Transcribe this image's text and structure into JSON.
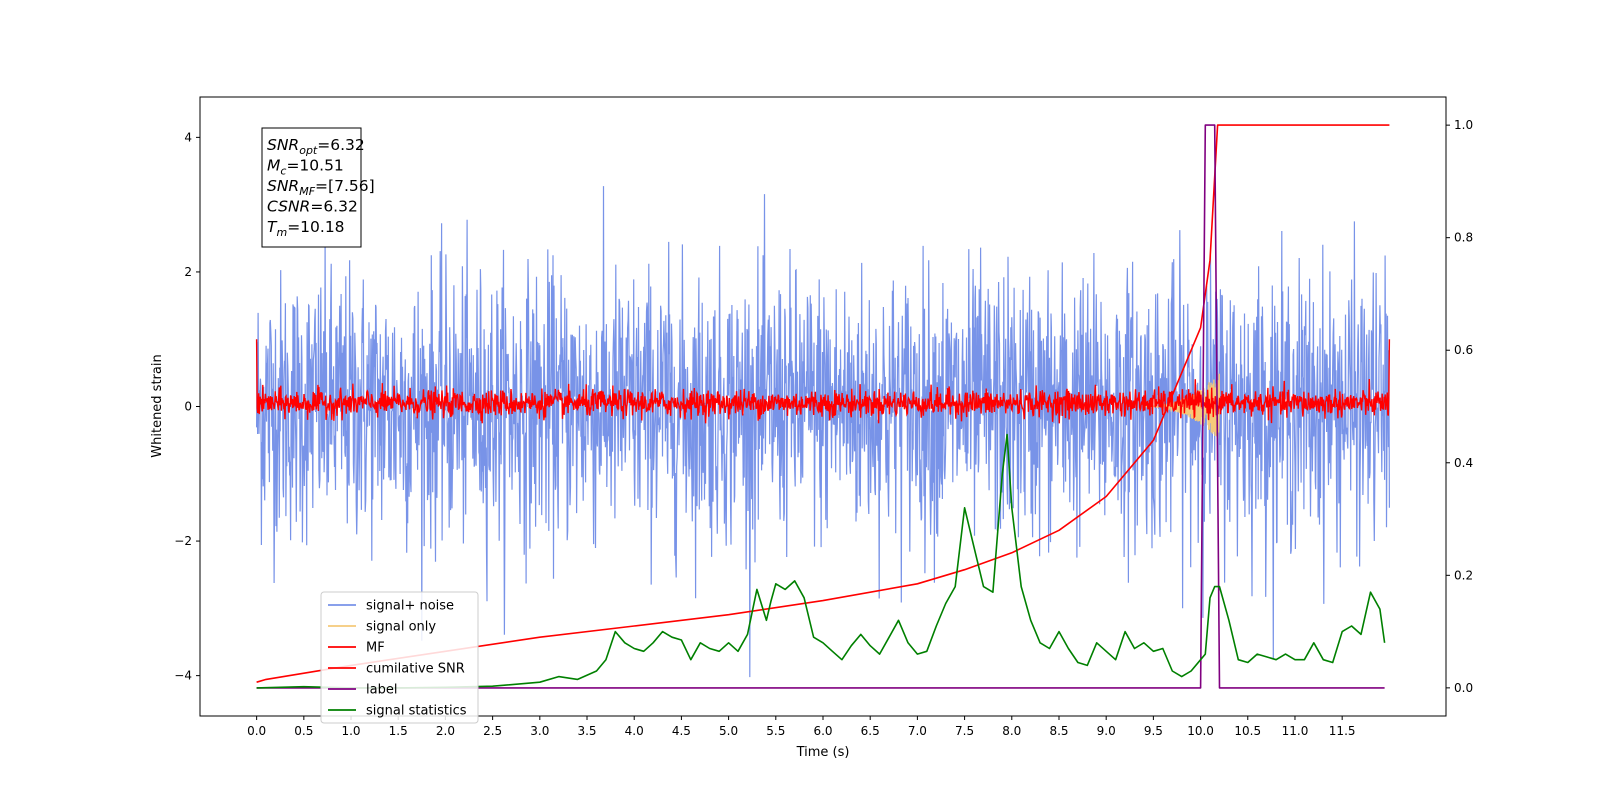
{
  "chart_data": {
    "type": "line",
    "xlabel": "Time (s)",
    "ylabel_left": "Whitened strain",
    "ylabel_right": "",
    "xlim": [
      -0.6,
      12.6
    ],
    "ylim_left": [
      -4.6,
      4.6
    ],
    "ylim_right": [
      -0.05,
      1.05
    ],
    "x_ticks": [
      "0.0",
      "0.5",
      "1.0",
      "1.5",
      "2.0",
      "2.5",
      "3.0",
      "3.5",
      "4.0",
      "4.5",
      "5.0",
      "5.5",
      "6.0",
      "6.5",
      "7.0",
      "7.5",
      "8.0",
      "8.5",
      "9.0",
      "9.5",
      "10.0",
      "10.5",
      "11.0",
      "11.5"
    ],
    "y_ticks_left": [
      "−4",
      "−2",
      "0",
      "2",
      "4"
    ],
    "y_ticks_right": [
      "0.0",
      "0.2",
      "0.4",
      "0.6",
      "0.8",
      "1.0"
    ],
    "grid": false,
    "legend_position": "lower-left",
    "annotation_lines": [
      {
        "sym": "SNR",
        "sub": "opt",
        "value": "=6.32"
      },
      {
        "sym": "M",
        "sub": "c",
        "value": "=10.51"
      },
      {
        "sym": "SNR",
        "sub": "MF",
        "value": "=[7.56]"
      },
      {
        "sym": "CSNR",
        "sub": "",
        "value": "=6.32"
      },
      {
        "sym": "T",
        "sub": "m",
        "value": "=10.18"
      }
    ],
    "series": [
      {
        "name": "signal+ noise",
        "axis": "left",
        "color": "#7893e8",
        "kind": "noise",
        "x_range": [
          0,
          12.0
        ],
        "mean": 0,
        "std": 1.0,
        "max_abs": 4.15
      },
      {
        "name": "signal only",
        "axis": "left",
        "color": "#f5c97a",
        "kind": "chirp",
        "x_range": [
          9.4,
          10.2
        ],
        "peak_amplitude": 0.5
      },
      {
        "name": "MF",
        "axis": "left",
        "color": "#ff0000",
        "kind": "noise",
        "x_range": [
          0,
          12.0
        ],
        "mean": 0.05,
        "std": 0.1,
        "start_value": 1.0,
        "end_value": 1.0
      },
      {
        "name": "cumilative SNR",
        "axis": "right",
        "color": "#ff0000",
        "kind": "curve",
        "x": [
          0.0,
          0.1,
          1.0,
          2.0,
          3.0,
          4.0,
          5.0,
          6.0,
          7.0,
          7.5,
          8.0,
          8.5,
          9.0,
          9.5,
          10.0,
          10.1,
          10.18,
          10.2,
          11.0,
          12.0
        ],
        "y": [
          0.01,
          0.015,
          0.04,
          0.065,
          0.09,
          0.11,
          0.13,
          0.155,
          0.185,
          0.21,
          0.24,
          0.28,
          0.34,
          0.44,
          0.64,
          0.76,
          1.0,
          1.0,
          1.0,
          1.0
        ]
      },
      {
        "name": "label",
        "axis": "right",
        "color": "#800080",
        "kind": "step",
        "x": [
          0.0,
          10.0,
          10.05,
          10.15,
          10.2,
          11.95
        ],
        "y": [
          0.0,
          0.0,
          1.0,
          1.0,
          0.0,
          0.0
        ]
      },
      {
        "name": "signal statistics",
        "axis": "right",
        "color": "#008000",
        "kind": "curve",
        "x": [
          0.0,
          0.5,
          1.0,
          1.5,
          2.0,
          2.5,
          3.0,
          3.2,
          3.4,
          3.6,
          3.7,
          3.8,
          3.9,
          4.0,
          4.1,
          4.2,
          4.3,
          4.4,
          4.5,
          4.6,
          4.7,
          4.8,
          4.9,
          5.0,
          5.1,
          5.2,
          5.3,
          5.4,
          5.45,
          5.5,
          5.6,
          5.7,
          5.8,
          5.9,
          6.0,
          6.1,
          6.2,
          6.3,
          6.4,
          6.5,
          6.6,
          6.7,
          6.8,
          6.9,
          7.0,
          7.1,
          7.2,
          7.3,
          7.4,
          7.5,
          7.6,
          7.7,
          7.8,
          7.9,
          7.95,
          8.0,
          8.1,
          8.2,
          8.3,
          8.4,
          8.5,
          8.6,
          8.7,
          8.8,
          8.9,
          9.0,
          9.1,
          9.2,
          9.3,
          9.4,
          9.5,
          9.6,
          9.7,
          9.8,
          9.9,
          10.0,
          10.05,
          10.1,
          10.15,
          10.2,
          10.3,
          10.4,
          10.5,
          10.6,
          10.7,
          10.8,
          10.9,
          11.0,
          11.1,
          11.2,
          11.3,
          11.4,
          11.5,
          11.6,
          11.7,
          11.8,
          11.9,
          11.95
        ],
        "y": [
          0.0,
          0.002,
          0.0,
          0.0,
          0.001,
          0.003,
          0.01,
          0.02,
          0.015,
          0.03,
          0.05,
          0.1,
          0.08,
          0.07,
          0.065,
          0.08,
          0.1,
          0.09,
          0.085,
          0.05,
          0.08,
          0.07,
          0.065,
          0.08,
          0.065,
          0.095,
          0.175,
          0.12,
          0.155,
          0.185,
          0.175,
          0.19,
          0.16,
          0.09,
          0.08,
          0.065,
          0.05,
          0.075,
          0.095,
          0.075,
          0.06,
          0.09,
          0.12,
          0.08,
          0.06,
          0.065,
          0.11,
          0.15,
          0.18,
          0.32,
          0.25,
          0.18,
          0.17,
          0.38,
          0.45,
          0.32,
          0.18,
          0.12,
          0.08,
          0.07,
          0.1,
          0.07,
          0.045,
          0.04,
          0.08,
          0.065,
          0.05,
          0.1,
          0.07,
          0.08,
          0.065,
          0.07,
          0.03,
          0.02,
          0.03,
          0.05,
          0.06,
          0.16,
          0.18,
          0.18,
          0.12,
          0.05,
          0.045,
          0.06,
          0.055,
          0.05,
          0.06,
          0.05,
          0.05,
          0.08,
          0.05,
          0.045,
          0.1,
          0.11,
          0.095,
          0.17,
          0.14,
          0.08
        ]
      }
    ]
  }
}
